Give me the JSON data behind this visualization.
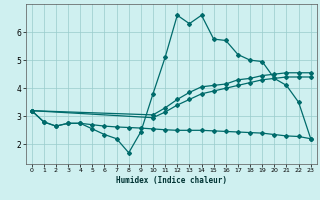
{
  "xlabel": "Humidex (Indice chaleur)",
  "bg_color": "#cff0f0",
  "line_color": "#006b6b",
  "grid_color": "#99cccc",
  "xlim": [
    -0.5,
    23.5
  ],
  "ylim": [
    1.3,
    7.0
  ],
  "xticks": [
    0,
    1,
    2,
    3,
    4,
    5,
    6,
    7,
    8,
    9,
    10,
    11,
    12,
    13,
    14,
    15,
    16,
    17,
    18,
    19,
    20,
    21,
    22,
    23
  ],
  "yticks": [
    2,
    3,
    4,
    5,
    6
  ],
  "line1_x": [
    0,
    1,
    2,
    3,
    4,
    5,
    6,
    7,
    8,
    9,
    10,
    11,
    12,
    13,
    14,
    15,
    16,
    17,
    18,
    19,
    20,
    21,
    22,
    23
  ],
  "line1_y": [
    3.2,
    2.8,
    2.65,
    2.75,
    2.75,
    2.55,
    2.35,
    2.2,
    1.7,
    2.45,
    3.8,
    5.1,
    6.6,
    6.3,
    6.6,
    5.75,
    5.7,
    5.2,
    5.0,
    4.95,
    4.35,
    4.1,
    3.5,
    2.2
  ],
  "line2_x": [
    0,
    10,
    11,
    12,
    13,
    14,
    15,
    16,
    17,
    18,
    19,
    20,
    21,
    22,
    23
  ],
  "line2_y": [
    3.2,
    3.05,
    3.3,
    3.6,
    3.85,
    4.05,
    4.1,
    4.15,
    4.3,
    4.35,
    4.45,
    4.5,
    4.55,
    4.55,
    4.55
  ],
  "line3_x": [
    0,
    10,
    11,
    12,
    13,
    14,
    15,
    16,
    17,
    18,
    19,
    20,
    21,
    22,
    23
  ],
  "line3_y": [
    3.2,
    2.95,
    3.15,
    3.4,
    3.6,
    3.8,
    3.9,
    4.0,
    4.1,
    4.2,
    4.3,
    4.35,
    4.4,
    4.4,
    4.4
  ],
  "line4_x": [
    0,
    1,
    2,
    3,
    4,
    5,
    6,
    7,
    8,
    9,
    10,
    11,
    12,
    13,
    14,
    15,
    16,
    17,
    18,
    19,
    20,
    21,
    22,
    23
  ],
  "line4_y": [
    3.2,
    2.8,
    2.65,
    2.75,
    2.75,
    2.7,
    2.65,
    2.62,
    2.6,
    2.58,
    2.55,
    2.52,
    2.5,
    2.5,
    2.5,
    2.48,
    2.46,
    2.44,
    2.42,
    2.4,
    2.35,
    2.3,
    2.28,
    2.2
  ]
}
